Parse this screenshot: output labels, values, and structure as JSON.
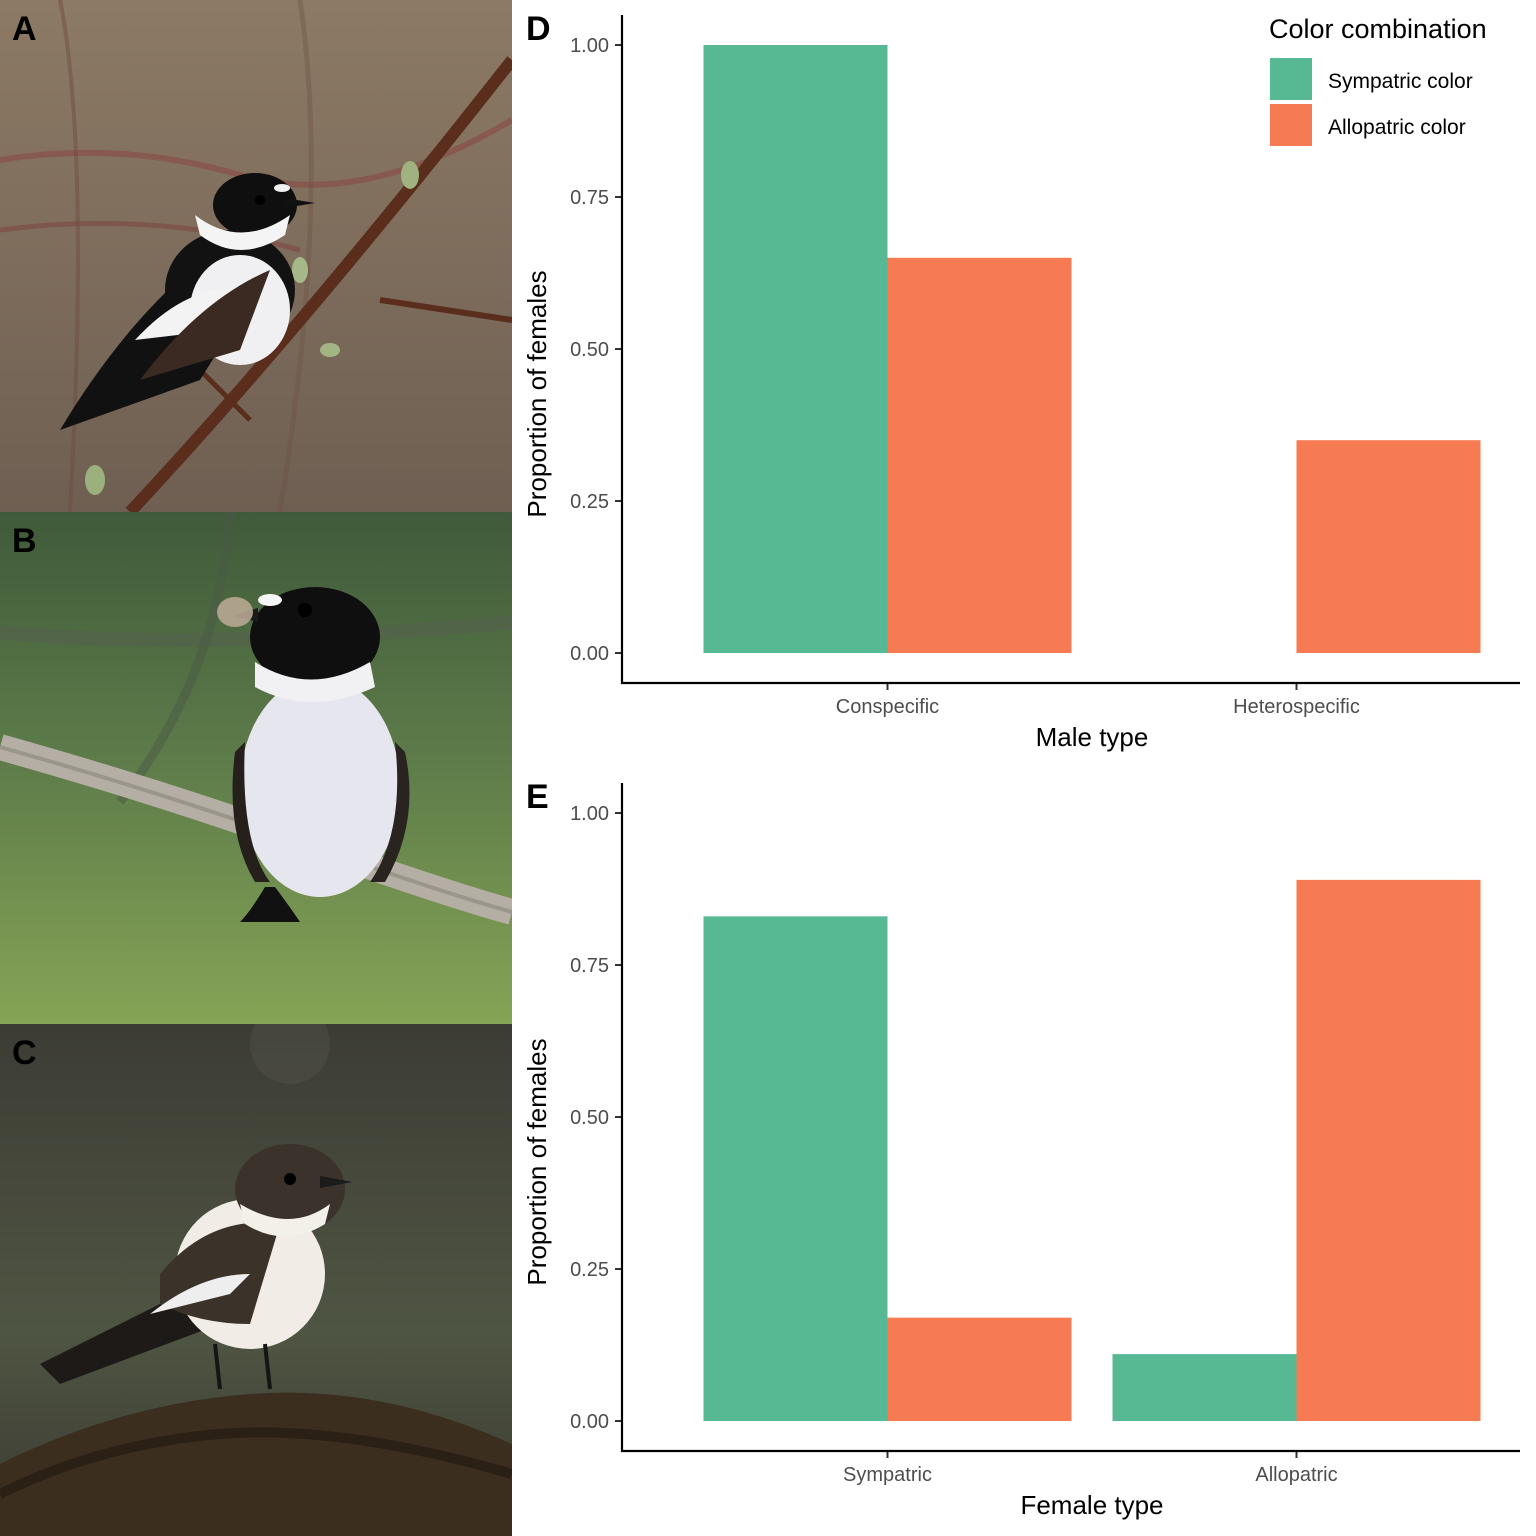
{
  "panels": {
    "a": {
      "label": "A"
    },
    "b": {
      "label": "B"
    },
    "c": {
      "label": "C"
    },
    "d": {
      "label": "D"
    },
    "e": {
      "label": "E"
    }
  },
  "legend": {
    "title": "Color combination",
    "placement": "top-right",
    "items": [
      {
        "label": "Sympatric color",
        "color": "#56b993"
      },
      {
        "label": "Allopatric color",
        "color": "#f77b52"
      }
    ]
  },
  "chart_data": [
    {
      "panel": "D",
      "type": "bar",
      "categories": [
        "Conspecific",
        "Heterospecific"
      ],
      "series": [
        {
          "name": "Sympatric color",
          "color": "#56b993",
          "values": [
            1.0,
            0.0
          ]
        },
        {
          "name": "Allopatric color",
          "color": "#f77b52",
          "values": [
            0.65,
            0.35
          ]
        }
      ],
      "xlabel": "Male type",
      "ylabel": "Proportion of females",
      "ylim": [
        0,
        1.0
      ],
      "yticks": [
        "0.00",
        "0.25",
        "0.50",
        "0.75",
        "1.00"
      ],
      "grid": false
    },
    {
      "panel": "E",
      "type": "bar",
      "categories": [
        "Sympatric",
        "Allopatric"
      ],
      "series": [
        {
          "name": "Sympatric color",
          "color": "#56b993",
          "values": [
            0.83,
            0.11
          ]
        },
        {
          "name": "Allopatric color",
          "color": "#f77b52",
          "values": [
            0.17,
            0.89
          ]
        }
      ],
      "xlabel": "Female type",
      "ylabel": "Proportion of females",
      "ylim": [
        0,
        1.0
      ],
      "yticks": [
        "0.00",
        "0.25",
        "0.50",
        "0.75",
        "1.00"
      ],
      "grid": false
    }
  ]
}
